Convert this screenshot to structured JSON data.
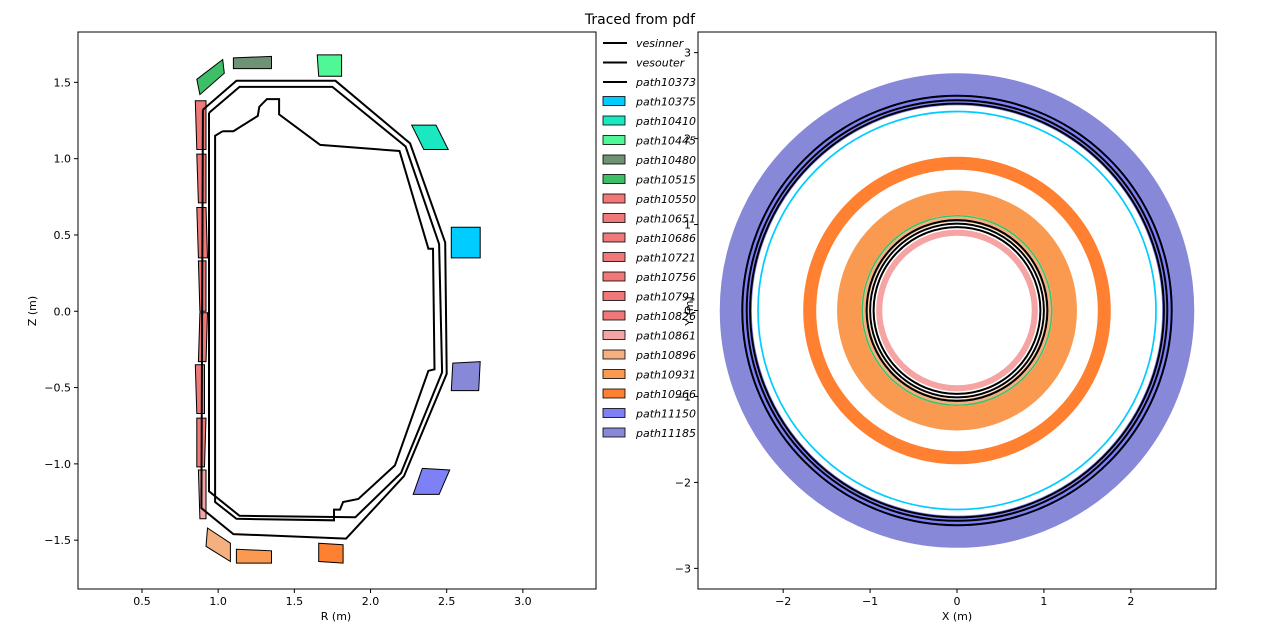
{
  "figure_title": "Traced from pdf",
  "chart_data": [
    {
      "type": "line",
      "panel": "left",
      "xlabel": "R (m)",
      "ylabel": "Z (m)",
      "xlim": [
        0.08,
        3.48
      ],
      "ylim": [
        -1.82,
        1.83
      ],
      "xticks": [
        "0.5",
        "1.0",
        "1.5",
        "2.0",
        "2.5",
        "3.0"
      ],
      "yticks": [
        "−1.5",
        "−1.0",
        "−0.5",
        "0.0",
        "0.5",
        "1.0",
        "1.5"
      ],
      "grid": false,
      "lines": [
        {
          "name": "vesinner",
          "color": "#000000",
          "points": [
            [
              0.94,
              1.3
            ],
            [
              1.14,
              1.47
            ],
            [
              1.75,
              1.47
            ],
            [
              2.23,
              1.08
            ],
            [
              2.45,
              0.44
            ],
            [
              2.47,
              -0.4
            ],
            [
              2.2,
              -1.06
            ],
            [
              1.9,
              -1.35
            ],
            [
              1.14,
              -1.34
            ],
            [
              0.94,
              -1.18
            ],
            [
              0.94,
              1.3
            ]
          ]
        },
        {
          "name": "vesouter",
          "color": "#000000",
          "points": [
            [
              0.9,
              1.32
            ],
            [
              1.12,
              1.51
            ],
            [
              1.77,
              1.51
            ],
            [
              2.26,
              1.1
            ],
            [
              2.49,
              0.45
            ],
            [
              2.5,
              -0.41
            ],
            [
              2.22,
              -1.08
            ],
            [
              1.84,
              -1.49
            ],
            [
              1.1,
              -1.46
            ],
            [
              0.89,
              -1.29
            ],
            [
              0.9,
              1.32
            ]
          ]
        },
        {
          "name": "path10373",
          "color": "#000000",
          "points": [
            [
              1.03,
              1.18
            ],
            [
              1.06,
              1.18
            ],
            [
              1.1,
              1.18
            ],
            [
              1.26,
              1.28
            ],
            [
              1.27,
              1.34
            ],
            [
              1.32,
              1.39
            ],
            [
              1.4,
              1.39
            ],
            [
              1.4,
              1.29
            ],
            [
              1.67,
              1.09
            ],
            [
              2.19,
              1.05
            ],
            [
              2.38,
              0.41
            ],
            [
              2.41,
              0.41
            ],
            [
              2.42,
              -0.38
            ],
            [
              2.38,
              -0.39
            ],
            [
              2.16,
              -1.01
            ],
            [
              1.92,
              -1.23
            ],
            [
              1.82,
              -1.25
            ],
            [
              1.8,
              -1.3
            ],
            [
              1.76,
              -1.3
            ],
            [
              1.76,
              -1.37
            ],
            [
              1.12,
              -1.36
            ],
            [
              0.98,
              -1.25
            ],
            [
              0.98,
              1.15
            ],
            [
              1.03,
              1.18
            ]
          ]
        }
      ],
      "coils": [
        {
          "name": "path10375",
          "color": "#00ccff",
          "points": [
            [
              2.53,
              0.55
            ],
            [
              2.72,
              0.55
            ],
            [
              2.72,
              0.35
            ],
            [
              2.53,
              0.35
            ]
          ]
        },
        {
          "name": "path10410",
          "color": "#1ae8c0",
          "points": [
            [
              2.27,
              1.22
            ],
            [
              2.43,
              1.22
            ],
            [
              2.51,
              1.06
            ],
            [
              2.35,
              1.06
            ]
          ]
        },
        {
          "name": "path10445",
          "color": "#4ff796",
          "points": [
            [
              1.65,
              1.68
            ],
            [
              1.81,
              1.68
            ],
            [
              1.81,
              1.54
            ],
            [
              1.66,
              1.54
            ]
          ]
        },
        {
          "name": "path10480",
          "color": "#6e9273",
          "points": [
            [
              1.1,
              1.66
            ],
            [
              1.35,
              1.67
            ],
            [
              1.35,
              1.59
            ],
            [
              1.1,
              1.59
            ]
          ]
        },
        {
          "name": "path10515",
          "color": "#3dbf68",
          "points": [
            [
              0.86,
              1.52
            ],
            [
              1.03,
              1.65
            ],
            [
              1.04,
              1.56
            ],
            [
              0.88,
              1.42
            ]
          ]
        },
        {
          "name": "path10550",
          "color": "#f07878",
          "points": [
            [
              0.85,
              1.38
            ],
            [
              0.92,
              1.38
            ],
            [
              0.92,
              1.06
            ],
            [
              0.86,
              1.06
            ]
          ]
        },
        {
          "name": "path10651",
          "color": "#f07878",
          "points": [
            [
              0.86,
              1.03
            ],
            [
              0.92,
              1.03
            ],
            [
              0.92,
              0.71
            ],
            [
              0.87,
              0.71
            ]
          ]
        },
        {
          "name": "path10686",
          "color": "#f07878",
          "points": [
            [
              0.86,
              0.68
            ],
            [
              0.92,
              0.68
            ],
            [
              0.93,
              0.35
            ],
            [
              0.87,
              0.35
            ]
          ]
        },
        {
          "name": "path10721",
          "color": "#f07878",
          "points": [
            [
              0.87,
              0.33
            ],
            [
              0.92,
              0.33
            ],
            [
              0.92,
              0.0
            ],
            [
              0.88,
              0.0
            ]
          ]
        },
        {
          "name": "path10756",
          "color": "#f07878",
          "points": [
            [
              0.88,
              -0.01
            ],
            [
              0.93,
              -0.01
            ],
            [
              0.92,
              -0.33
            ],
            [
              0.87,
              -0.33
            ]
          ]
        },
        {
          "name": "path10791",
          "color": "#f07878",
          "points": [
            [
              0.85,
              -0.35
            ],
            [
              0.91,
              -0.35
            ],
            [
              0.91,
              -0.67
            ],
            [
              0.86,
              -0.67
            ]
          ]
        },
        {
          "name": "path10826",
          "color": "#f07878",
          "points": [
            [
              0.86,
              -0.7
            ],
            [
              0.92,
              -0.7
            ],
            [
              0.91,
              -1.02
            ],
            [
              0.86,
              -1.02
            ]
          ]
        },
        {
          "name": "path10861",
          "color": "#f5a3a3",
          "points": [
            [
              0.87,
              -1.04
            ],
            [
              0.92,
              -1.04
            ],
            [
              0.92,
              -1.36
            ],
            [
              0.88,
              -1.36
            ]
          ]
        },
        {
          "name": "path10896",
          "color": "#f5b080",
          "points": [
            [
              0.93,
              -1.42
            ],
            [
              1.08,
              -1.52
            ],
            [
              1.08,
              -1.64
            ],
            [
              0.92,
              -1.54
            ]
          ]
        },
        {
          "name": "path10931",
          "color": "#fa9a50",
          "points": [
            [
              1.12,
              -1.56
            ],
            [
              1.35,
              -1.57
            ],
            [
              1.35,
              -1.65
            ],
            [
              1.12,
              -1.65
            ]
          ]
        },
        {
          "name": "path10966",
          "color": "#ff8030",
          "points": [
            [
              1.66,
              -1.52
            ],
            [
              1.82,
              -1.53
            ],
            [
              1.82,
              -1.65
            ],
            [
              1.66,
              -1.64
            ]
          ]
        },
        {
          "name": "path11150",
          "color": "#7e80f5",
          "points": [
            [
              2.34,
              -1.03
            ],
            [
              2.52,
              -1.04
            ],
            [
              2.45,
              -1.2
            ],
            [
              2.28,
              -1.2
            ]
          ]
        },
        {
          "name": "path11185",
          "color": "#8788d8",
          "points": [
            [
              2.54,
              -0.34
            ],
            [
              2.72,
              -0.33
            ],
            [
              2.71,
              -0.52
            ],
            [
              2.53,
              -0.52
            ]
          ]
        }
      ]
    },
    {
      "type": "line",
      "panel": "right",
      "xlabel": "X (m)",
      "ylabel": "Y (m)",
      "xlim": [
        -2.98,
        2.98
      ],
      "ylim": [
        -3.24,
        3.24
      ],
      "xticks": [
        "−2",
        "−1",
        "0",
        "1",
        "2"
      ],
      "yticks": [
        "−3",
        "−2",
        "−1",
        "0",
        "1",
        "2",
        "3"
      ],
      "grid": false,
      "rings": [
        {
          "name": "path11185",
          "color": "#8788d8",
          "r_inner": 2.49,
          "r_outer": 2.73
        },
        {
          "name": "path11150",
          "color": "#7e80f5",
          "r_inner": 2.36,
          "r_outer": 2.49
        },
        {
          "name": "path10375",
          "color": "#00ccff",
          "r_inner": 2.28,
          "r_outer": 2.3
        },
        {
          "name": "path10966",
          "color": "#ff8030",
          "r_inner": 1.62,
          "r_outer": 1.77
        },
        {
          "name": "path10931",
          "color": "#fa9a50",
          "r_inner": 1.1,
          "r_outer": 1.38
        },
        {
          "name": "path10515",
          "color": "#3dbf68",
          "r_inner": 1.08,
          "r_outer": 1.1
        },
        {
          "name": "path10896",
          "color": "#f5b080",
          "r_inner": 1.02,
          "r_outer": 1.08
        },
        {
          "name": "path10861",
          "color": "#f5a3a3",
          "r_inner": 0.86,
          "r_outer": 0.93
        }
      ],
      "circles": [
        {
          "name": "vesouter",
          "color": "#000000",
          "r": 2.47
        },
        {
          "name": "vesinner",
          "color": "#000000",
          "r": 2.42
        },
        {
          "name": "path10373",
          "color": "#000000",
          "r": 2.38
        },
        {
          "name": "vesouter",
          "color": "#000000",
          "r": 1.04
        },
        {
          "name": "vesinner",
          "color": "#000000",
          "r": 1.0
        },
        {
          "name": "path10373",
          "color": "#000000",
          "r": 0.96
        }
      ]
    }
  ],
  "legend": [
    {
      "label": "vesinner",
      "kind": "line",
      "color": "#000000"
    },
    {
      "label": "vesouter",
      "kind": "line",
      "color": "#000000"
    },
    {
      "label": "path10373",
      "kind": "line",
      "color": "#000000"
    },
    {
      "label": "path10375",
      "kind": "patch",
      "color": "#00ccff"
    },
    {
      "label": "path10410",
      "kind": "patch",
      "color": "#1ae8c0"
    },
    {
      "label": "path10445",
      "kind": "patch",
      "color": "#4ff796"
    },
    {
      "label": "path10480",
      "kind": "patch",
      "color": "#6e9273"
    },
    {
      "label": "path10515",
      "kind": "patch",
      "color": "#3dbf68"
    },
    {
      "label": "path10550",
      "kind": "patch",
      "color": "#f07878"
    },
    {
      "label": "path10651",
      "kind": "patch",
      "color": "#f07878"
    },
    {
      "label": "path10686",
      "kind": "patch",
      "color": "#f07878"
    },
    {
      "label": "path10721",
      "kind": "patch",
      "color": "#f07878"
    },
    {
      "label": "path10756",
      "kind": "patch",
      "color": "#f07878"
    },
    {
      "label": "path10791",
      "kind": "patch",
      "color": "#f07878"
    },
    {
      "label": "path10826",
      "kind": "patch",
      "color": "#f07878"
    },
    {
      "label": "path10861",
      "kind": "patch",
      "color": "#f5a3a3"
    },
    {
      "label": "path10896",
      "kind": "patch",
      "color": "#f5b080"
    },
    {
      "label": "path10931",
      "kind": "patch",
      "color": "#fa9a50"
    },
    {
      "label": "path10966",
      "kind": "patch",
      "color": "#ff8030"
    },
    {
      "label": "path11150",
      "kind": "patch",
      "color": "#7e80f5"
    },
    {
      "label": "path11185",
      "kind": "patch",
      "color": "#8788d8"
    }
  ]
}
